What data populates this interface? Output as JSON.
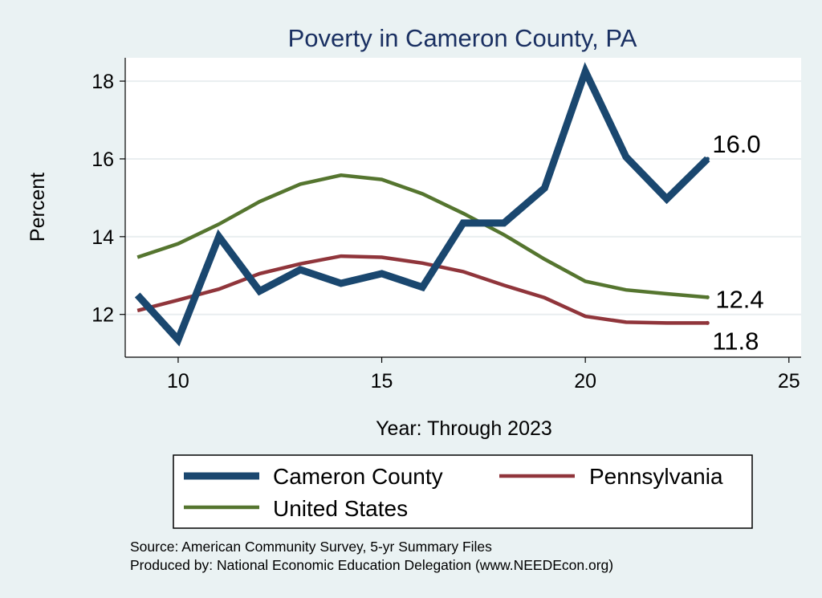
{
  "chart_data": {
    "type": "line",
    "title": "Poverty in Cameron County, PA",
    "xlabel": "Year: Through 2023",
    "ylabel": "Percent",
    "xlim": [
      8.7,
      25.3
    ],
    "ylim": [
      10.9,
      18.6
    ],
    "xticks": [
      10,
      15,
      20,
      25
    ],
    "yticks": [
      12,
      14,
      16,
      18
    ],
    "grid": true,
    "legend_position": "bottom",
    "series": [
      {
        "name": "Cameron County",
        "color": "#1a476f",
        "width": "thick",
        "x": [
          9,
          10,
          11,
          12,
          13,
          14,
          15,
          16,
          17,
          18,
          19,
          20,
          21,
          22,
          23
        ],
        "y": [
          12.5,
          11.35,
          14.0,
          12.6,
          13.15,
          12.8,
          13.05,
          12.7,
          14.35,
          14.35,
          15.25,
          18.25,
          16.05,
          14.97,
          16.0
        ],
        "end_label": "16.0"
      },
      {
        "name": "Pennsylvania",
        "color": "#90353b",
        "width": "medium",
        "x": [
          9,
          10,
          11,
          12,
          13,
          14,
          15,
          16,
          17,
          18,
          19,
          20,
          21,
          22,
          23
        ],
        "y": [
          12.1,
          12.37,
          12.65,
          13.05,
          13.3,
          13.5,
          13.47,
          13.32,
          13.1,
          12.75,
          12.43,
          11.95,
          11.8,
          11.78,
          11.78
        ],
        "end_label": "11.8"
      },
      {
        "name": "United States",
        "color": "#55752f",
        "width": "medium",
        "x": [
          9,
          10,
          11,
          12,
          13,
          14,
          15,
          16,
          17,
          18,
          19,
          20,
          21,
          22,
          23
        ],
        "y": [
          13.47,
          13.82,
          14.32,
          14.9,
          15.35,
          15.58,
          15.47,
          15.1,
          14.6,
          14.05,
          13.42,
          12.85,
          12.63,
          12.53,
          12.44
        ],
        "end_label": "12.4"
      }
    ],
    "legend": [
      {
        "name": "Cameron County",
        "series": 0
      },
      {
        "name": "Pennsylvania",
        "series": 1
      },
      {
        "name": "United States",
        "series": 2
      }
    ],
    "notes": [
      "Source: American Community Survey, 5-yr Summary Files",
      "Produced by: National Economic Education Delegation (www.NEEDEcon.org)"
    ]
  }
}
